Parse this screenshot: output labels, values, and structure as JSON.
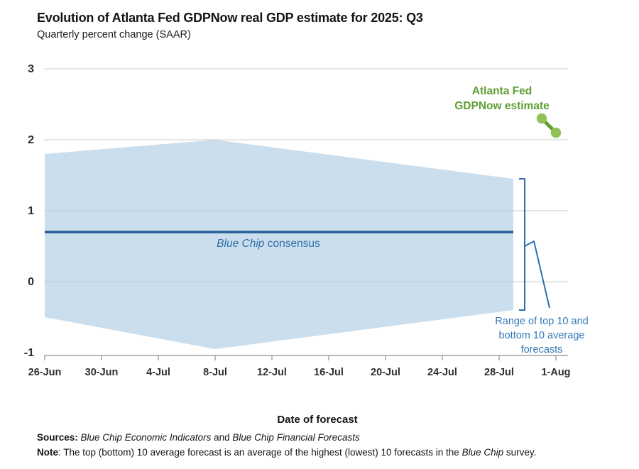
{
  "title": "Evolution of Atlanta Fed GDPNow real GDP estimate for 2025: Q3",
  "subtitle": "Quarterly percent change (SAAR)",
  "xlabel": "Date of forecast",
  "labels": {
    "gdpnow_line1": "Atlanta Fed",
    "gdpnow_line2": "GDPNow estimate",
    "consensus_italic": "Blue Chip",
    "consensus_rest": " consensus",
    "range_line1": "Range of top 10 and",
    "range_line2": "bottom 10 average",
    "range_line3": "forecasts"
  },
  "footer": {
    "sources_label": "Sources:",
    "source1": " Blue Chip Economic Indicators",
    "sources_and": " and ",
    "source2": "Blue Chip Financial Forecasts",
    "note_label": "Note",
    "note_pre": ": The top (bottom) 10 average forecast is an average of the highest (lowest) 10 forecasts in the ",
    "note_italic": "Blue Chip",
    "note_post": " survey."
  },
  "colors": {
    "band": "#cbdeed",
    "consensus_line": "#235e96",
    "consensus_text": "#2e6da8",
    "bracket": "#2d6fad",
    "range_text": "#3477b7",
    "green_line": "#649f2e",
    "green_dot": "#8fc158",
    "green_text": "#5f9e32",
    "gridline": "#c6c6c6",
    "axis": "#8f8f8f",
    "tick_text": "#2e2e2e"
  },
  "chart_data": {
    "type": "area",
    "title": "Evolution of Atlanta Fed GDPNow real GDP estimate for 2025: Q3",
    "subtitle": "Quarterly percent change (SAAR)",
    "xlabel": "Date of forecast",
    "ylabel": "Quarterly percent change (SAAR)",
    "ylim": [
      -1,
      3
    ],
    "y_ticks": [
      3,
      2,
      1,
      0,
      -1
    ],
    "x_tick_labels": [
      "26-Jun",
      "30-Jun",
      "4-Jul",
      "8-Jul",
      "12-Jul",
      "16-Jul",
      "20-Jul",
      "24-Jul",
      "28-Jul",
      "1-Aug"
    ],
    "grid": "horizontal",
    "band": {
      "name": "Range of top 10 and bottom 10 average forecasts (Blue Chip)",
      "days": [
        0,
        12,
        33
      ],
      "dates": [
        "26-Jun",
        "8-Jul",
        "29-Jul"
      ],
      "top": [
        1.8,
        2.0,
        1.45
      ],
      "bottom": [
        -0.5,
        -0.95,
        -0.4
      ]
    },
    "consensus": {
      "name": "Blue Chip consensus",
      "value": 0.7,
      "start_day": 0,
      "end_day": 33
    },
    "gdpnow": {
      "name": "Atlanta Fed GDPNow estimate",
      "days": [
        35,
        36
      ],
      "dates": [
        "31-Jul",
        "1-Aug"
      ],
      "values": [
        2.3,
        2.1
      ]
    },
    "annotations": {
      "bracket": {
        "day": 33.8,
        "top": 1.45,
        "bottom": -0.4
      },
      "pointer": [
        [
          33.8,
          0.5
        ],
        [
          34.45,
          0.57
        ],
        [
          35.55,
          -0.37
        ]
      ]
    }
  }
}
